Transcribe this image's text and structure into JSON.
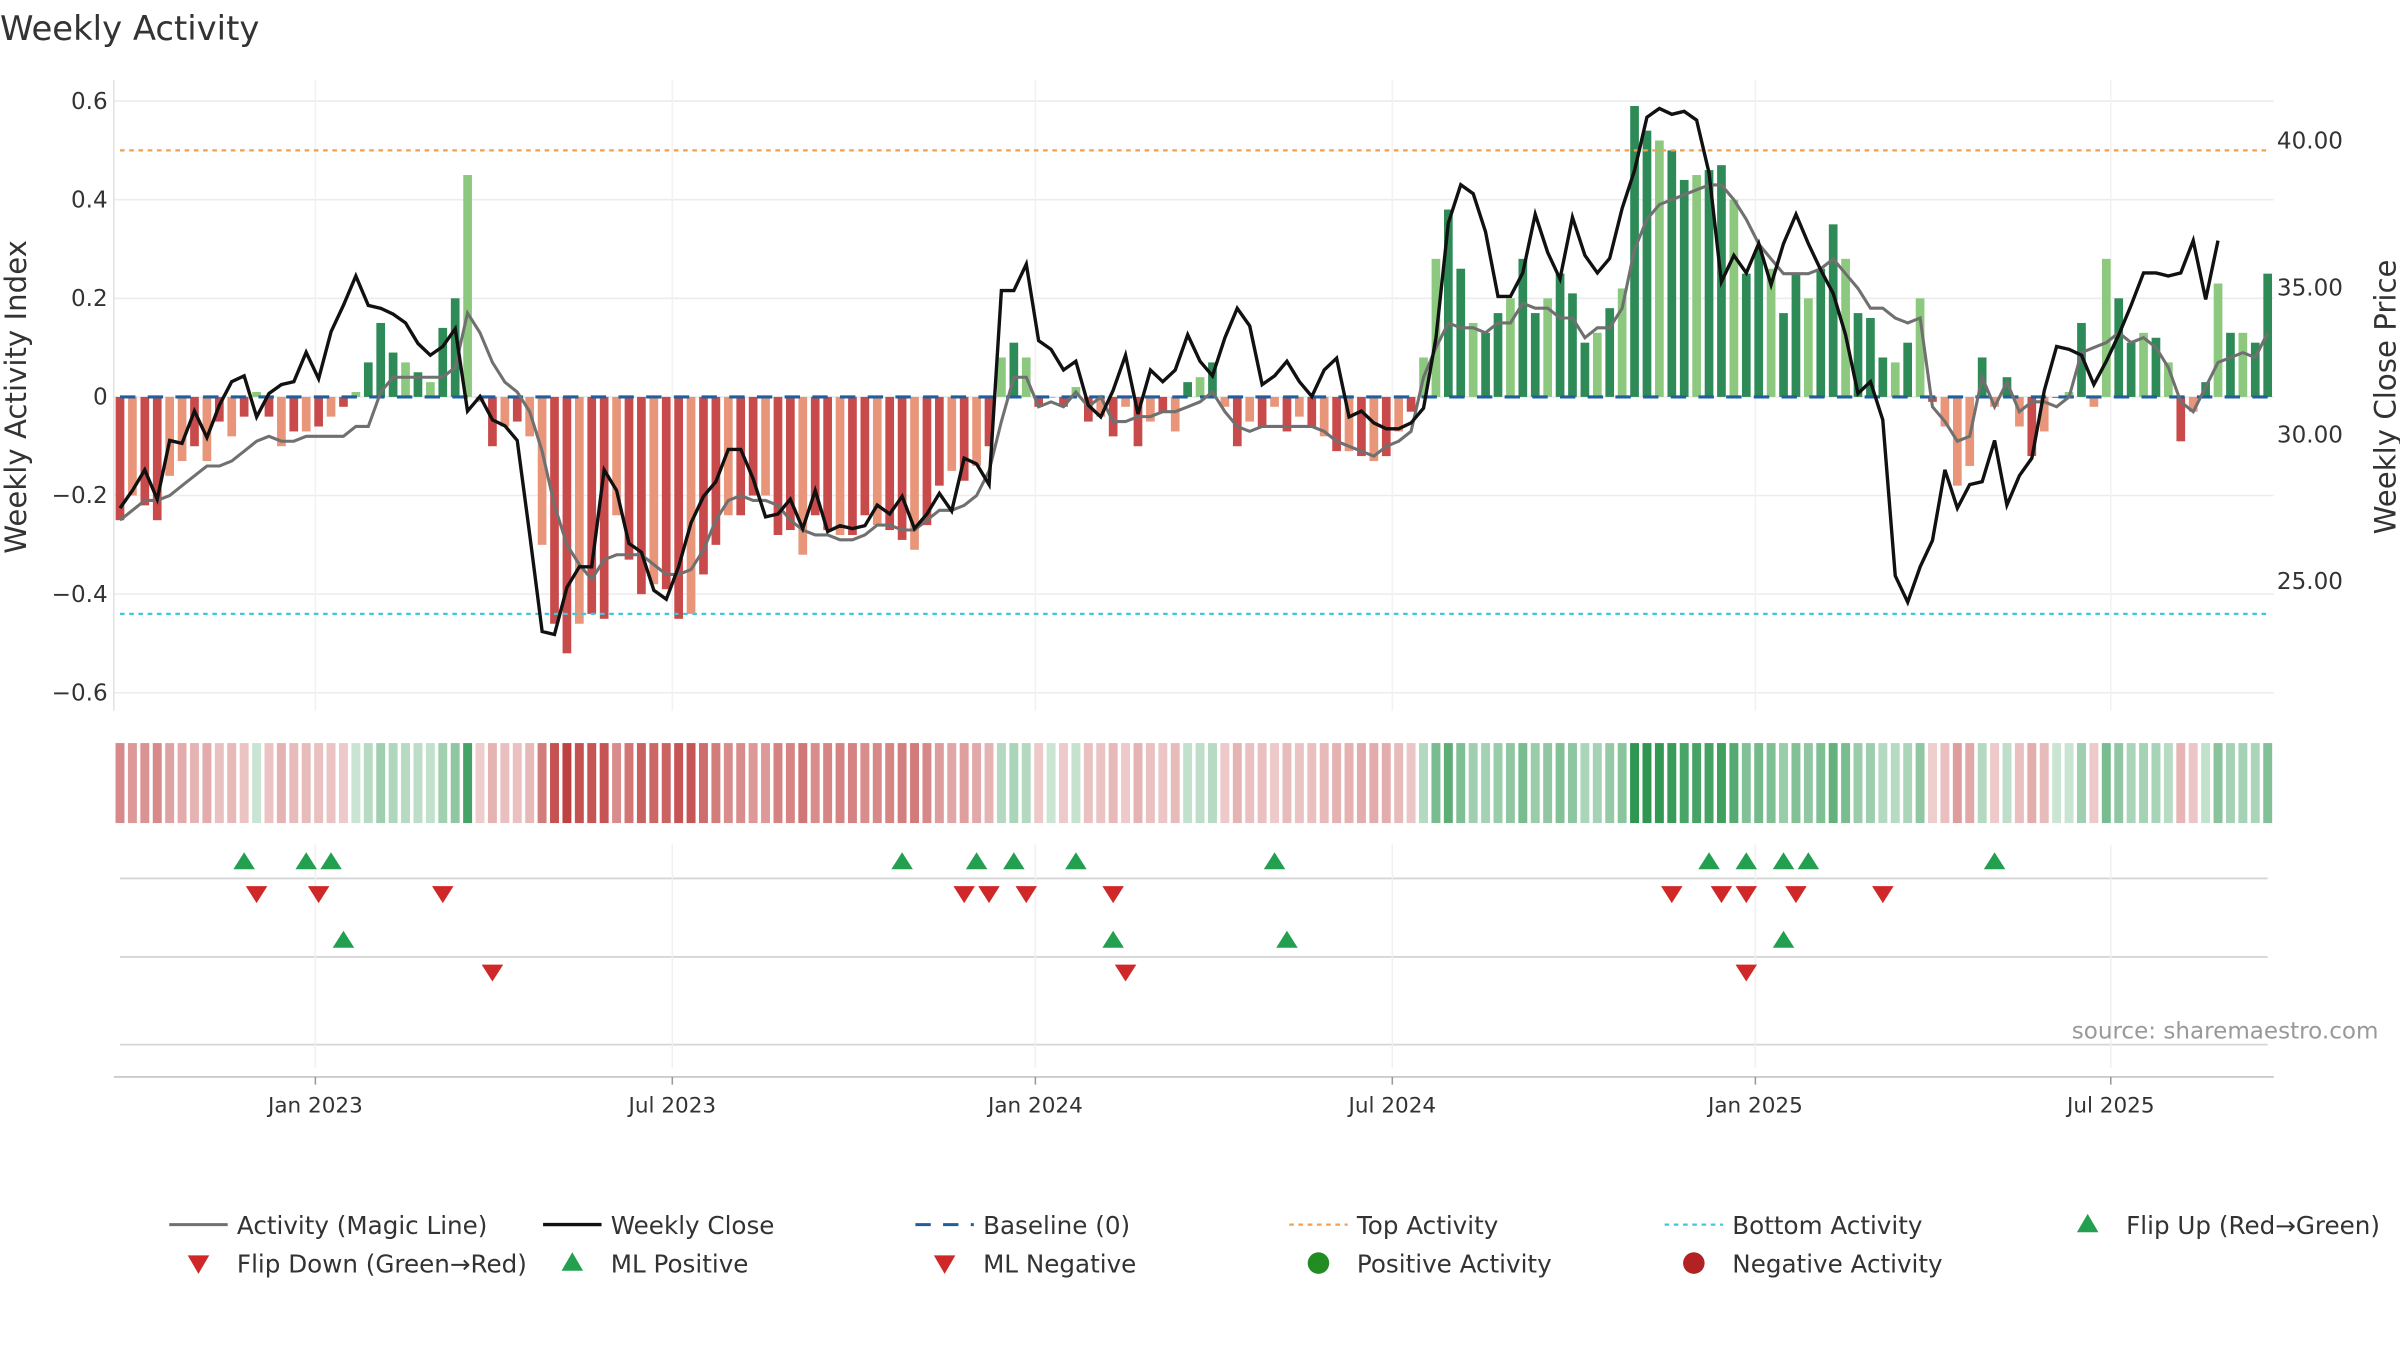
{
  "chart_data": {
    "type": "bar+line",
    "title": "Weekly Activity",
    "ylabel_left": "Weekly Activity Index",
    "ylabel_right": "Weekly Close Price",
    "ylim_left": [
      -0.63,
      0.6
    ],
    "ylim_right": [
      21.3,
      41.5
    ],
    "yticks_left": [
      "0.6",
      "0.4",
      "0.2",
      "0",
      "−0.2",
      "−0.4",
      "−0.6"
    ],
    "yticks_right": [
      "40.00",
      "35.00",
      "30.00",
      "25.00"
    ],
    "xticks": [
      "Jan 2023",
      "Jul 2023",
      "Jan 2024",
      "Jul 2024",
      "Jan 2025",
      "Jul 2025"
    ],
    "top_activity": 0.5,
    "bottom_activity": -0.44,
    "grid": true,
    "legend_position": "bottom",
    "source": "source: sharemaestro.com",
    "activity": [
      -0.25,
      -0.2,
      -0.22,
      -0.25,
      -0.16,
      -0.13,
      -0.1,
      -0.13,
      -0.05,
      -0.08,
      -0.04,
      0.01,
      -0.04,
      -0.1,
      -0.07,
      -0.07,
      -0.06,
      -0.04,
      -0.02,
      0.01,
      0.07,
      0.15,
      0.09,
      0.07,
      0.05,
      0.03,
      0.14,
      0.2,
      0.45,
      -0.01,
      -0.1,
      -0.06,
      -0.05,
      -0.08,
      -0.3,
      -0.46,
      -0.52,
      -0.46,
      -0.44,
      -0.45,
      -0.24,
      -0.33,
      -0.4,
      -0.38,
      -0.39,
      -0.45,
      -0.44,
      -0.36,
      -0.3,
      -0.24,
      -0.24,
      -0.2,
      -0.2,
      -0.28,
      -0.27,
      -0.32,
      -0.24,
      -0.27,
      -0.28,
      -0.28,
      -0.24,
      -0.26,
      -0.27,
      -0.29,
      -0.31,
      -0.26,
      -0.18,
      -0.15,
      -0.17,
      -0.14,
      -0.1,
      0.08,
      0.11,
      0.08,
      -0.02,
      0.0,
      -0.02,
      0.02,
      -0.05,
      -0.04,
      -0.08,
      -0.02,
      -0.1,
      -0.05,
      -0.03,
      -0.07,
      0.03,
      0.04,
      0.07,
      -0.02,
      -0.1,
      -0.05,
      -0.06,
      -0.02,
      -0.07,
      -0.04,
      -0.06,
      -0.08,
      -0.11,
      -0.11,
      -0.12,
      -0.13,
      -0.12,
      -0.07,
      -0.03,
      0.08,
      0.28,
      0.38,
      0.26,
      0.15,
      0.13,
      0.17,
      0.2,
      0.28,
      0.17,
      0.2,
      0.25,
      0.21,
      0.11,
      0.13,
      0.18,
      0.22,
      0.59,
      0.54,
      0.52,
      0.5,
      0.44,
      0.45,
      0.46,
      0.47,
      0.4,
      0.25,
      0.3,
      0.26,
      0.17,
      0.25,
      0.2,
      0.26,
      0.35,
      0.28,
      0.17,
      0.16,
      0.08,
      0.07,
      0.11,
      0.2,
      -0.01,
      -0.06,
      -0.18,
      -0.14,
      0.08,
      -0.02,
      0.04,
      -0.06,
      -0.12,
      -0.07,
      0.0,
      0.01,
      0.15,
      -0.02,
      0.28,
      0.2,
      0.11,
      0.13,
      0.12,
      0.07,
      -0.09,
      -0.03,
      0.03,
      0.23,
      0.13,
      0.13,
      0.11,
      0.25
    ],
    "magic_line": [
      -0.25,
      -0.23,
      -0.21,
      -0.21,
      -0.2,
      -0.18,
      -0.16,
      -0.14,
      -0.14,
      -0.13,
      -0.11,
      -0.09,
      -0.08,
      -0.09,
      -0.09,
      -0.08,
      -0.08,
      -0.08,
      -0.08,
      -0.06,
      -0.06,
      0.01,
      0.04,
      0.04,
      0.04,
      0.04,
      0.04,
      0.06,
      0.17,
      0.13,
      0.07,
      0.03,
      0.01,
      -0.03,
      -0.11,
      -0.22,
      -0.3,
      -0.34,
      -0.37,
      -0.33,
      -0.32,
      -0.32,
      -0.32,
      -0.34,
      -0.36,
      -0.36,
      -0.35,
      -0.31,
      -0.25,
      -0.21,
      -0.2,
      -0.21,
      -0.21,
      -0.22,
      -0.25,
      -0.27,
      -0.28,
      -0.28,
      -0.29,
      -0.29,
      -0.28,
      -0.26,
      -0.26,
      -0.27,
      -0.27,
      -0.25,
      -0.23,
      -0.23,
      -0.22,
      -0.2,
      -0.15,
      -0.05,
      0.04,
      0.04,
      -0.02,
      -0.01,
      -0.02,
      0.01,
      -0.02,
      0.0,
      -0.05,
      -0.05,
      -0.04,
      -0.04,
      -0.03,
      -0.03,
      -0.02,
      -0.01,
      0.01,
      -0.03,
      -0.06,
      -0.07,
      -0.06,
      -0.06,
      -0.06,
      -0.06,
      -0.06,
      -0.07,
      -0.09,
      -0.1,
      -0.11,
      -0.12,
      -0.1,
      -0.09,
      -0.07,
      0.04,
      0.1,
      0.15,
      0.14,
      0.14,
      0.13,
      0.15,
      0.15,
      0.19,
      0.18,
      0.18,
      0.16,
      0.16,
      0.12,
      0.14,
      0.14,
      0.18,
      0.3,
      0.36,
      0.39,
      0.4,
      0.41,
      0.42,
      0.43,
      0.43,
      0.4,
      0.36,
      0.31,
      0.28,
      0.25,
      0.25,
      0.25,
      0.26,
      0.28,
      0.25,
      0.22,
      0.18,
      0.18,
      0.16,
      0.15,
      0.16,
      -0.02,
      -0.05,
      -0.09,
      -0.08,
      0.04,
      -0.02,
      0.03,
      -0.03,
      -0.01,
      -0.01,
      -0.02,
      0.0,
      0.09,
      0.1,
      0.11,
      0.13,
      0.11,
      0.12,
      0.1,
      0.06,
      -0.01,
      -0.03,
      0.02,
      0.07,
      0.08,
      0.09,
      0.08,
      0.13
    ],
    "weekly_close": [
      27.5,
      28.1,
      28.8,
      27.8,
      29.8,
      29.7,
      30.8,
      29.9,
      31.0,
      31.8,
      32.0,
      30.6,
      31.4,
      31.7,
      31.8,
      32.8,
      31.9,
      33.5,
      34.4,
      35.4,
      34.4,
      34.3,
      34.1,
      33.8,
      33.1,
      32.7,
      33.0,
      33.6,
      30.8,
      31.3,
      30.5,
      30.3,
      29.8,
      26.6,
      23.3,
      23.2,
      24.8,
      25.5,
      25.5,
      28.8,
      28.1,
      26.3,
      26.0,
      24.7,
      24.4,
      25.5,
      27.0,
      27.9,
      28.4,
      29.5,
      29.5,
      28.5,
      27.2,
      27.3,
      27.8,
      26.8,
      28.1,
      26.7,
      26.9,
      26.8,
      26.9,
      27.6,
      27.3,
      27.9,
      26.8,
      27.3,
      28.0,
      27.4,
      29.2,
      29.0,
      28.3,
      34.9,
      34.9,
      35.8,
      33.2,
      32.9,
      32.2,
      32.5,
      31.0,
      30.6,
      31.5,
      32.7,
      30.7,
      32.2,
      31.8,
      32.2,
      33.4,
      32.5,
      32.0,
      33.3,
      34.3,
      33.7,
      31.7,
      32.0,
      32.5,
      31.8,
      31.3,
      32.2,
      32.6,
      30.6,
      30.8,
      30.4,
      30.2,
      30.2,
      30.4,
      30.9,
      33.3,
      37.2,
      38.5,
      38.2,
      36.9,
      34.7,
      34.7,
      35.5,
      37.5,
      36.2,
      35.3,
      37.4,
      36.1,
      35.5,
      36.0,
      37.7,
      39.0,
      40.8,
      41.1,
      40.9,
      41.0,
      40.7,
      38.9,
      35.2,
      36.1,
      35.5,
      36.5,
      35.1,
      36.5,
      37.5,
      36.5,
      35.6,
      34.8,
      33.4,
      31.4,
      31.8,
      30.5,
      25.2,
      24.3,
      25.5,
      26.4,
      28.8,
      27.5,
      28.3,
      28.4,
      29.8,
      27.6,
      28.6,
      29.2,
      31.5,
      33.0,
      32.9,
      32.7,
      31.7,
      32.5,
      33.4,
      34.4,
      35.5,
      35.5,
      35.4,
      35.5,
      36.6,
      34.6,
      36.6
    ],
    "strip_values": [
      -0.25,
      -0.2,
      -0.22,
      -0.25,
      -0.16,
      -0.13,
      -0.1,
      -0.13,
      -0.05,
      -0.08,
      -0.04,
      0.01,
      -0.04,
      -0.1,
      -0.07,
      -0.07,
      -0.06,
      -0.04,
      -0.02,
      0.01,
      0.07,
      0.15,
      0.09,
      0.07,
      0.05,
      0.03,
      0.14,
      0.2,
      0.45,
      -0.01,
      -0.1,
      -0.06,
      -0.05,
      -0.08,
      -0.3,
      -0.46,
      -0.52,
      -0.46,
      -0.44,
      -0.45,
      -0.24,
      -0.33,
      -0.4,
      -0.38,
      -0.39,
      -0.45,
      -0.44,
      -0.36,
      -0.3,
      -0.24,
      -0.24,
      -0.2,
      -0.2,
      -0.28,
      -0.27,
      -0.32,
      -0.24,
      -0.27,
      -0.28,
      -0.28,
      -0.24,
      -0.26,
      -0.27,
      -0.29,
      -0.31,
      -0.26,
      -0.18,
      -0.15,
      -0.17,
      -0.14,
      -0.1,
      0.08,
      0.11,
      0.08,
      -0.02,
      0.0,
      -0.02,
      0.02,
      -0.05,
      -0.04,
      -0.08,
      -0.02,
      -0.1,
      -0.05,
      -0.03,
      -0.07,
      0.03,
      0.04,
      0.07,
      -0.02,
      -0.1,
      -0.05,
      -0.06,
      -0.02,
      -0.07,
      -0.04,
      -0.06,
      -0.08,
      -0.11,
      -0.11,
      -0.12,
      -0.13,
      -0.12,
      -0.07,
      -0.03,
      0.08,
      0.28,
      0.38,
      0.26,
      0.15,
      0.13,
      0.17,
      0.2,
      0.28,
      0.17,
      0.2,
      0.25,
      0.21,
      0.11,
      0.13,
      0.18,
      0.22,
      0.59,
      0.54,
      0.52,
      0.5,
      0.44,
      0.45,
      0.46,
      0.47,
      0.4,
      0.25,
      0.3,
      0.26,
      0.17,
      0.25,
      0.2,
      0.26,
      0.35,
      0.28,
      0.17,
      0.16,
      0.08,
      0.07,
      0.11,
      0.2,
      -0.01,
      -0.06,
      -0.18,
      -0.14,
      0.08,
      -0.02,
      0.04,
      -0.06,
      -0.12,
      -0.07,
      0.0,
      0.01,
      0.15,
      -0.02,
      0.28,
      0.2,
      0.11,
      0.13,
      0.12,
      0.07,
      -0.09,
      -0.03,
      0.03,
      0.23,
      0.13,
      0.13,
      0.11,
      0.25
    ],
    "flip_up": [
      10,
      15,
      17,
      63,
      69,
      72,
      77,
      93,
      128,
      131,
      134,
      136,
      151
    ],
    "flip_down": [
      11,
      16,
      26,
      68,
      70,
      73,
      80,
      125,
      129,
      131,
      135,
      142
    ],
    "ml_positive": [
      18,
      80,
      94,
      134
    ],
    "ml_negative": [
      30,
      81,
      131
    ],
    "colors": {
      "pos_strong": "#2e8b57",
      "pos_light": "#8cc97e",
      "neg_strong": "#c94a4a",
      "neg_light": "#e8957a",
      "magic_line": "#707070",
      "close": "#111111",
      "baseline": "#1f5f9e",
      "top_activity": "#f0a050",
      "bottom_activity": "#40c8d8",
      "up_marker": "#22a050",
      "down_marker": "#d02828",
      "pos_dot": "#228b22",
      "neg_dot": "#b22222"
    }
  },
  "legend": [
    {
      "label": "Activity (Magic Line)",
      "icon": "gray-line"
    },
    {
      "label": "Weekly Close",
      "icon": "black-line"
    },
    {
      "label": "Baseline (0)",
      "icon": "blue-dashed-line"
    },
    {
      "label": "Top Activity",
      "icon": "orange-dotted-line"
    },
    {
      "label": "Bottom Activity",
      "icon": "cyan-dotted-line"
    },
    {
      "label": "Flip Up (Red→Green)",
      "icon": "green-triangle-up"
    },
    {
      "label": "Flip Down (Green→Red)",
      "icon": "red-triangle-down"
    },
    {
      "label": "ML Positive",
      "icon": "green-triangle-up"
    },
    {
      "label": "ML Negative",
      "icon": "red-triangle-down"
    },
    {
      "label": "Positive Activity",
      "icon": "green-dot"
    },
    {
      "label": "Negative Activity",
      "icon": "red-dot"
    }
  ]
}
